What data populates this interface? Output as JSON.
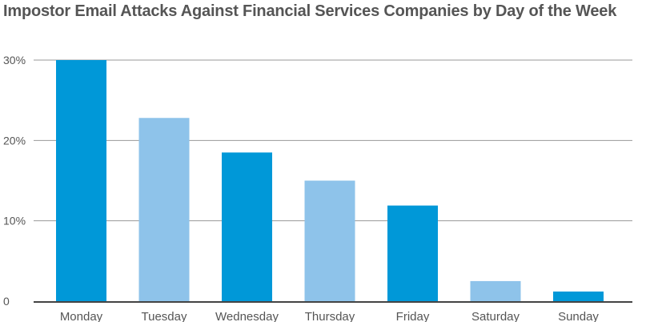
{
  "chart_data": {
    "type": "bar",
    "title": "Impostor Email Attacks Against Financial Services Companies by Day of the Week",
    "categories": [
      "Monday",
      "Tuesday",
      "Wednesday",
      "Thursday",
      "Friday",
      "Saturday",
      "Sunday"
    ],
    "values": [
      30,
      22.8,
      18.5,
      15,
      11.9,
      2.5,
      1.2
    ],
    "ylim": [
      0,
      30
    ],
    "yticks": [
      {
        "value": 0,
        "label": "0"
      },
      {
        "value": 10,
        "label": "10%"
      },
      {
        "value": 20,
        "label": "20%"
      },
      {
        "value": 30,
        "label": "30%"
      }
    ],
    "grid": true,
    "colors": [
      "#0098d8",
      "#8ec3ea",
      "#0098d8",
      "#8ec3ea",
      "#0098d8",
      "#8ec3ea",
      "#0098d8"
    ],
    "gridline_color": "#999999",
    "axis_color": "#444444"
  }
}
